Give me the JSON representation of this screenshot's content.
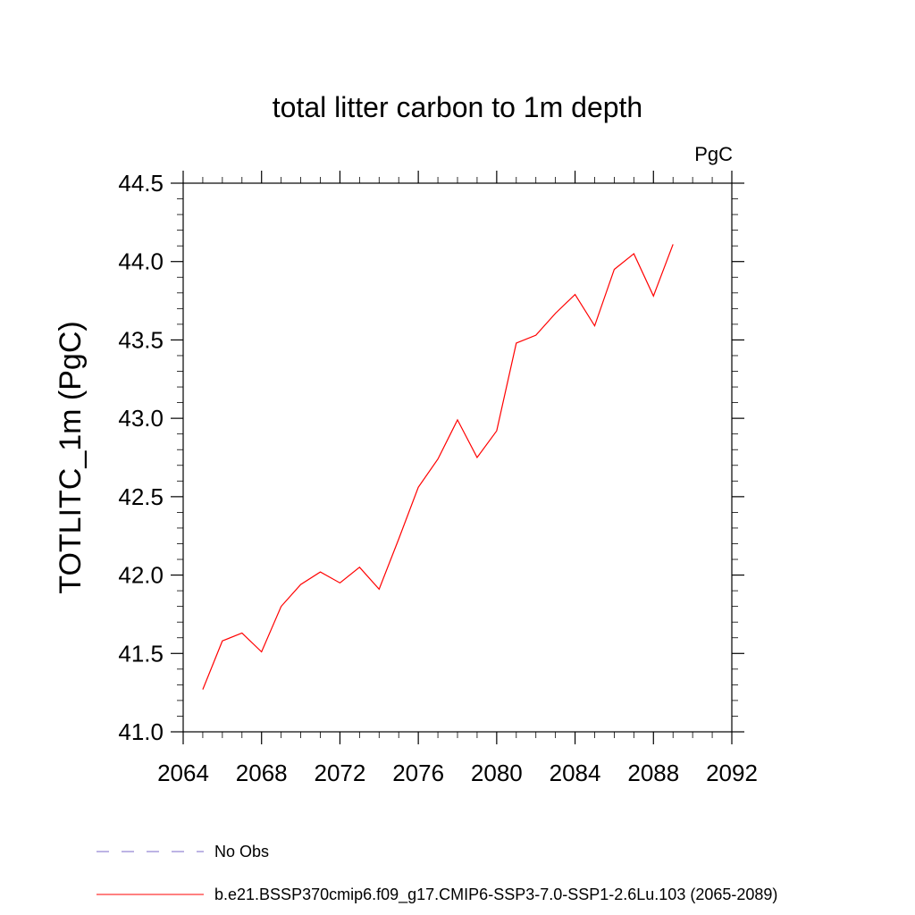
{
  "chart_data": {
    "type": "line",
    "title": "total litter carbon to 1m depth",
    "units_label": "PgC",
    "ylabel": "TOTLITC_1m  (PgC)",
    "xlabel": "",
    "xlim": [
      2064,
      2092
    ],
    "ylim": [
      41.0,
      44.5
    ],
    "x_ticks": [
      2064,
      2068,
      2072,
      2076,
      2080,
      2084,
      2088,
      2092
    ],
    "x_tick_labels": [
      "2064",
      "2068",
      "2072",
      "2076",
      "2080",
      "2084",
      "2088",
      "2092"
    ],
    "y_ticks": [
      41.0,
      41.5,
      42.0,
      42.5,
      43.0,
      43.5,
      44.0,
      44.5
    ],
    "y_tick_labels": [
      "41.0",
      "41.5",
      "42.0",
      "42.5",
      "43.0",
      "43.5",
      "44.0",
      "44.5"
    ],
    "grid": false,
    "legend_position": "bottom",
    "series": [
      {
        "name": "b.e21.BSSP370cmip6.f09_g17.CMIP6-SSP3-7.0-SSP1-2.6Lu.103 (2065-2089)",
        "color": "#ff0000",
        "style": "solid",
        "x": [
          2065,
          2066,
          2067,
          2068,
          2069,
          2070,
          2071,
          2072,
          2073,
          2074,
          2075,
          2076,
          2077,
          2078,
          2079,
          2080,
          2081,
          2082,
          2083,
          2084,
          2085,
          2086,
          2087,
          2088,
          2089
        ],
        "y": [
          41.27,
          41.58,
          41.63,
          41.51,
          41.8,
          41.94,
          42.02,
          41.95,
          42.05,
          41.91,
          42.23,
          42.56,
          42.74,
          42.99,
          42.75,
          42.92,
          43.48,
          43.53,
          43.67,
          43.79,
          43.59,
          43.95,
          44.05,
          43.78,
          44.11
        ]
      }
    ],
    "legend": [
      {
        "label": "No Obs",
        "color": "#7b68c8",
        "style": "dashed"
      },
      {
        "label": "b.e21.BSSP370cmip6.f09_g17.CMIP6-SSP3-7.0-SSP1-2.6Lu.103 (2065-2089)",
        "color": "#ff0000",
        "style": "solid"
      }
    ]
  }
}
